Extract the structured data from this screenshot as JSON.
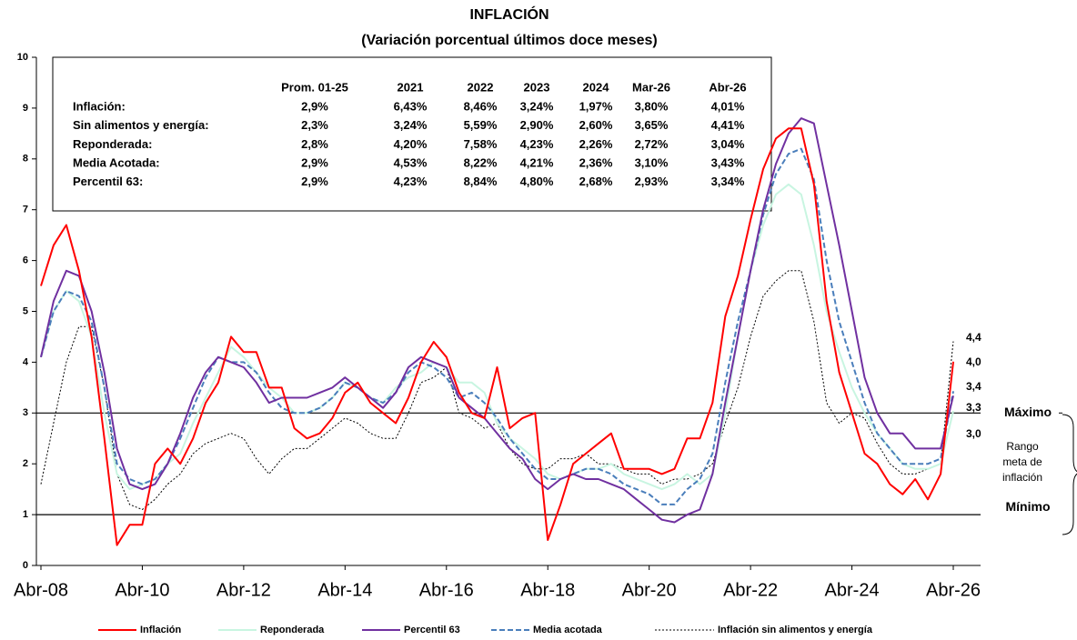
{
  "chart_data": {
    "type": "line",
    "title": "INFLACIÓN",
    "subtitle": "(Variación porcentual últimos doce meses)",
    "categories": [
      "Abr-08",
      null,
      null,
      null,
      null,
      null,
      null,
      null,
      "Abr-10",
      null,
      null,
      null,
      null,
      null,
      null,
      null,
      "Abr-12",
      null,
      null,
      null,
      null,
      null,
      null,
      null,
      "Abr-14",
      null,
      null,
      null,
      null,
      null,
      null,
      null,
      "Abr-16",
      null,
      null,
      null,
      null,
      null,
      null,
      null,
      "Abr-18",
      null,
      null,
      null,
      null,
      null,
      null,
      null,
      "Abr-20",
      null,
      null,
      null,
      null,
      null,
      null,
      null,
      "Abr-22",
      null,
      null,
      null,
      null,
      null,
      null,
      null,
      "Abr-24",
      null,
      null,
      null,
      null,
      null,
      null,
      null,
      "Abr-26"
    ],
    "ylim": [
      0,
      10
    ],
    "yticks": [
      0,
      1,
      2,
      3,
      4,
      5,
      6,
      7,
      8,
      9,
      10
    ],
    "series": [
      {
        "name": "Inflación sin alimentos y energía",
        "color": "#000000",
        "dash": "2,2",
        "width": 1,
        "values": [
          1.6,
          2.8,
          4.0,
          4.7,
          4.7,
          3.5,
          1.8,
          1.2,
          1.1,
          1.3,
          1.6,
          1.8,
          2.2,
          2.4,
          2.5,
          2.6,
          2.5,
          2.1,
          1.8,
          2.1,
          2.3,
          2.3,
          2.5,
          2.7,
          2.9,
          2.8,
          2.6,
          2.5,
          2.5,
          3.0,
          3.6,
          3.7,
          3.9,
          3.0,
          2.9,
          2.7,
          2.8,
          2.3,
          2.0,
          1.9,
          1.9,
          2.1,
          2.1,
          2.2,
          2.0,
          2.0,
          1.9,
          1.8,
          1.8,
          1.6,
          1.7,
          1.7,
          1.8,
          2.0,
          2.8,
          3.5,
          4.5,
          5.3,
          5.6,
          5.8,
          5.8,
          4.8,
          3.2,
          2.8,
          3.0,
          2.9,
          2.4,
          2.0,
          1.8,
          1.8,
          1.9,
          2.0,
          4.41
        ]
      },
      {
        "name": "Reponderada",
        "color": "#c8f5e1",
        "dash": null,
        "width": 2,
        "values": [
          4.1,
          5.0,
          5.4,
          5.2,
          4.5,
          3.0,
          1.8,
          1.5,
          1.6,
          1.7,
          2.0,
          2.2,
          2.8,
          3.3,
          3.8,
          4.3,
          4.1,
          3.8,
          3.5,
          3.3,
          3.0,
          3.0,
          3.1,
          3.3,
          3.6,
          3.5,
          3.3,
          3.2,
          3.5,
          3.7,
          3.8,
          4.0,
          3.9,
          3.6,
          3.6,
          3.4,
          2.8,
          2.5,
          2.3,
          2.1,
          1.8,
          1.7,
          1.8,
          1.9,
          1.9,
          2.0,
          1.8,
          1.7,
          1.6,
          1.5,
          1.6,
          1.8,
          1.6,
          1.8,
          3.0,
          4.5,
          5.8,
          6.7,
          7.3,
          7.5,
          7.3,
          6.3,
          5.0,
          4.2,
          3.5,
          3.0,
          2.6,
          2.3,
          2.0,
          1.9,
          1.9,
          2.0,
          3.04
        ]
      },
      {
        "name": "Media acotada",
        "color": "#4a7ebb",
        "dash": "6,3",
        "width": 2,
        "values": [
          4.1,
          5.0,
          5.4,
          5.3,
          4.8,
          3.5,
          2.0,
          1.7,
          1.6,
          1.7,
          2.0,
          2.5,
          3.1,
          3.7,
          4.1,
          4.0,
          4.0,
          3.8,
          3.4,
          3.1,
          3.0,
          3.0,
          3.1,
          3.3,
          3.6,
          3.5,
          3.3,
          3.2,
          3.4,
          3.8,
          4.0,
          3.9,
          3.7,
          3.3,
          3.4,
          3.2,
          2.9,
          2.5,
          2.2,
          1.9,
          1.7,
          1.7,
          1.8,
          1.9,
          1.9,
          1.8,
          1.6,
          1.5,
          1.4,
          1.2,
          1.2,
          1.5,
          1.7,
          2.2,
          3.6,
          4.8,
          5.8,
          6.9,
          7.7,
          8.1,
          8.2,
          7.6,
          6.0,
          4.8,
          4.0,
          3.2,
          2.6,
          2.3,
          2.0,
          2.0,
          2.0,
          2.1,
          3.43
        ]
      },
      {
        "name": "Percentil 63",
        "color": "#7030a0",
        "dash": null,
        "width": 2,
        "values": [
          4.1,
          5.2,
          5.8,
          5.7,
          5.0,
          3.8,
          2.3,
          1.6,
          1.5,
          1.6,
          2.0,
          2.6,
          3.3,
          3.8,
          4.1,
          4.0,
          3.9,
          3.6,
          3.2,
          3.3,
          3.3,
          3.3,
          3.4,
          3.5,
          3.7,
          3.5,
          3.3,
          3.1,
          3.4,
          3.9,
          4.1,
          4.0,
          3.9,
          3.3,
          3.1,
          2.9,
          2.6,
          2.3,
          2.1,
          1.7,
          1.5,
          1.7,
          1.8,
          1.7,
          1.7,
          1.6,
          1.5,
          1.3,
          1.1,
          0.9,
          0.85,
          1.0,
          1.1,
          1.8,
          3.2,
          4.5,
          5.8,
          7.0,
          7.9,
          8.5,
          8.8,
          8.7,
          7.5,
          6.3,
          5.0,
          3.7,
          3.0,
          2.6,
          2.6,
          2.3,
          2.3,
          2.3,
          3.34
        ]
      },
      {
        "name": "Inflación",
        "color": "#ff0000",
        "dash": null,
        "width": 2,
        "values": [
          5.5,
          6.3,
          6.7,
          5.8,
          4.5,
          2.5,
          0.4,
          0.8,
          0.8,
          2.0,
          2.3,
          2.0,
          2.5,
          3.2,
          3.6,
          4.5,
          4.2,
          4.2,
          3.5,
          3.5,
          2.7,
          2.5,
          2.6,
          2.9,
          3.4,
          3.6,
          3.2,
          3.0,
          2.8,
          3.3,
          4.0,
          4.4,
          4.1,
          3.4,
          3.0,
          2.9,
          3.9,
          2.7,
          2.9,
          3.0,
          0.5,
          1.2,
          2.0,
          2.2,
          2.4,
          2.6,
          1.9,
          1.9,
          1.9,
          1.8,
          1.9,
          2.5,
          2.5,
          3.2,
          4.9,
          5.7,
          6.8,
          7.8,
          8.4,
          8.6,
          8.6,
          7.5,
          5.2,
          3.8,
          3.0,
          2.2,
          2.0,
          1.6,
          1.4,
          1.7,
          1.3,
          1.8,
          4.01
        ]
      }
    ],
    "legend_order": [
      4,
      1,
      3,
      2,
      0
    ],
    "reference_lines": [
      {
        "value": 3,
        "label": "Máximo"
      },
      {
        "value": 1,
        "label": "Mínimo"
      }
    ],
    "range_label": [
      "Rango",
      "meta de",
      "inflación"
    ],
    "end_labels": [
      "4,4",
      "4,0",
      "3,4",
      "3,3",
      "3,0"
    ],
    "summary_table": {
      "columns": [
        "Prom. 01-25",
        "2021",
        "2022",
        "2023",
        "2024",
        "Mar-26",
        "Abr-26"
      ],
      "rows": [
        {
          "label": "Inflación:",
          "values": [
            "2,9%",
            "6,43%",
            "8,46%",
            "3,24%",
            "1,97%",
            "3,80%",
            "4,01%"
          ]
        },
        {
          "label": "Sin alimentos y energía:",
          "values": [
            "2,3%",
            "3,24%",
            "5,59%",
            "2,90%",
            "2,60%",
            "3,65%",
            "4,41%"
          ]
        },
        {
          "label": "Reponderada:",
          "values": [
            "2,8%",
            "4,20%",
            "7,58%",
            "4,23%",
            "2,26%",
            "2,72%",
            "3,04%"
          ]
        },
        {
          "label": "Media Acotada:",
          "values": [
            "2,9%",
            "4,53%",
            "8,22%",
            "4,21%",
            "2,36%",
            "3,10%",
            "3,43%"
          ]
        },
        {
          "label": "Percentil 63:",
          "values": [
            "2,9%",
            "4,23%",
            "8,84%",
            "4,80%",
            "2,68%",
            "2,93%",
            "3,34%"
          ]
        }
      ]
    }
  }
}
